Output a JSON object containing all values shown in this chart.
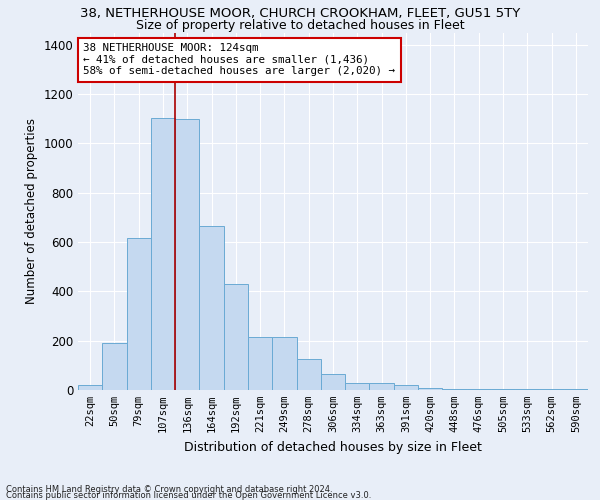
{
  "title1": "38, NETHERHOUSE MOOR, CHURCH CROOKHAM, FLEET, GU51 5TY",
  "title2": "Size of property relative to detached houses in Fleet",
  "xlabel": "Distribution of detached houses by size in Fleet",
  "ylabel": "Number of detached properties",
  "categories": [
    "22sqm",
    "50sqm",
    "79sqm",
    "107sqm",
    "136sqm",
    "164sqm",
    "192sqm",
    "221sqm",
    "249sqm",
    "278sqm",
    "306sqm",
    "334sqm",
    "363sqm",
    "391sqm",
    "420sqm",
    "448sqm",
    "476sqm",
    "505sqm",
    "533sqm",
    "562sqm",
    "590sqm"
  ],
  "values": [
    20,
    190,
    615,
    1105,
    1100,
    665,
    430,
    215,
    215,
    125,
    65,
    28,
    28,
    20,
    10,
    6,
    4,
    4,
    3,
    3,
    3
  ],
  "bar_color": "#c5d9f0",
  "bar_edge_color": "#6aaad4",
  "vline_color": "#aa0000",
  "vline_pos": 3.5,
  "annotation_text": "38 NETHERHOUSE MOOR: 124sqm\n← 41% of detached houses are smaller (1,436)\n58% of semi-detached houses are larger (2,020) →",
  "annotation_box_color": "#ffffff",
  "annotation_border_color": "#cc0000",
  "ylim": [
    0,
    1450
  ],
  "yticks": [
    0,
    200,
    400,
    600,
    800,
    1000,
    1200,
    1400
  ],
  "footer1": "Contains HM Land Registry data © Crown copyright and database right 2024.",
  "footer2": "Contains public sector information licensed under the Open Government Licence v3.0.",
  "bg_color": "#e8eef8",
  "grid_color": "#ffffff",
  "title1_fontsize": 9.5,
  "title2_fontsize": 9.0,
  "ylabel_fontsize": 8.5,
  "xlabel_fontsize": 9.0,
  "tick_fontsize": 7.5,
  "ytick_fontsize": 8.5,
  "footer_fontsize": 6.0,
  "annot_fontsize": 7.8
}
